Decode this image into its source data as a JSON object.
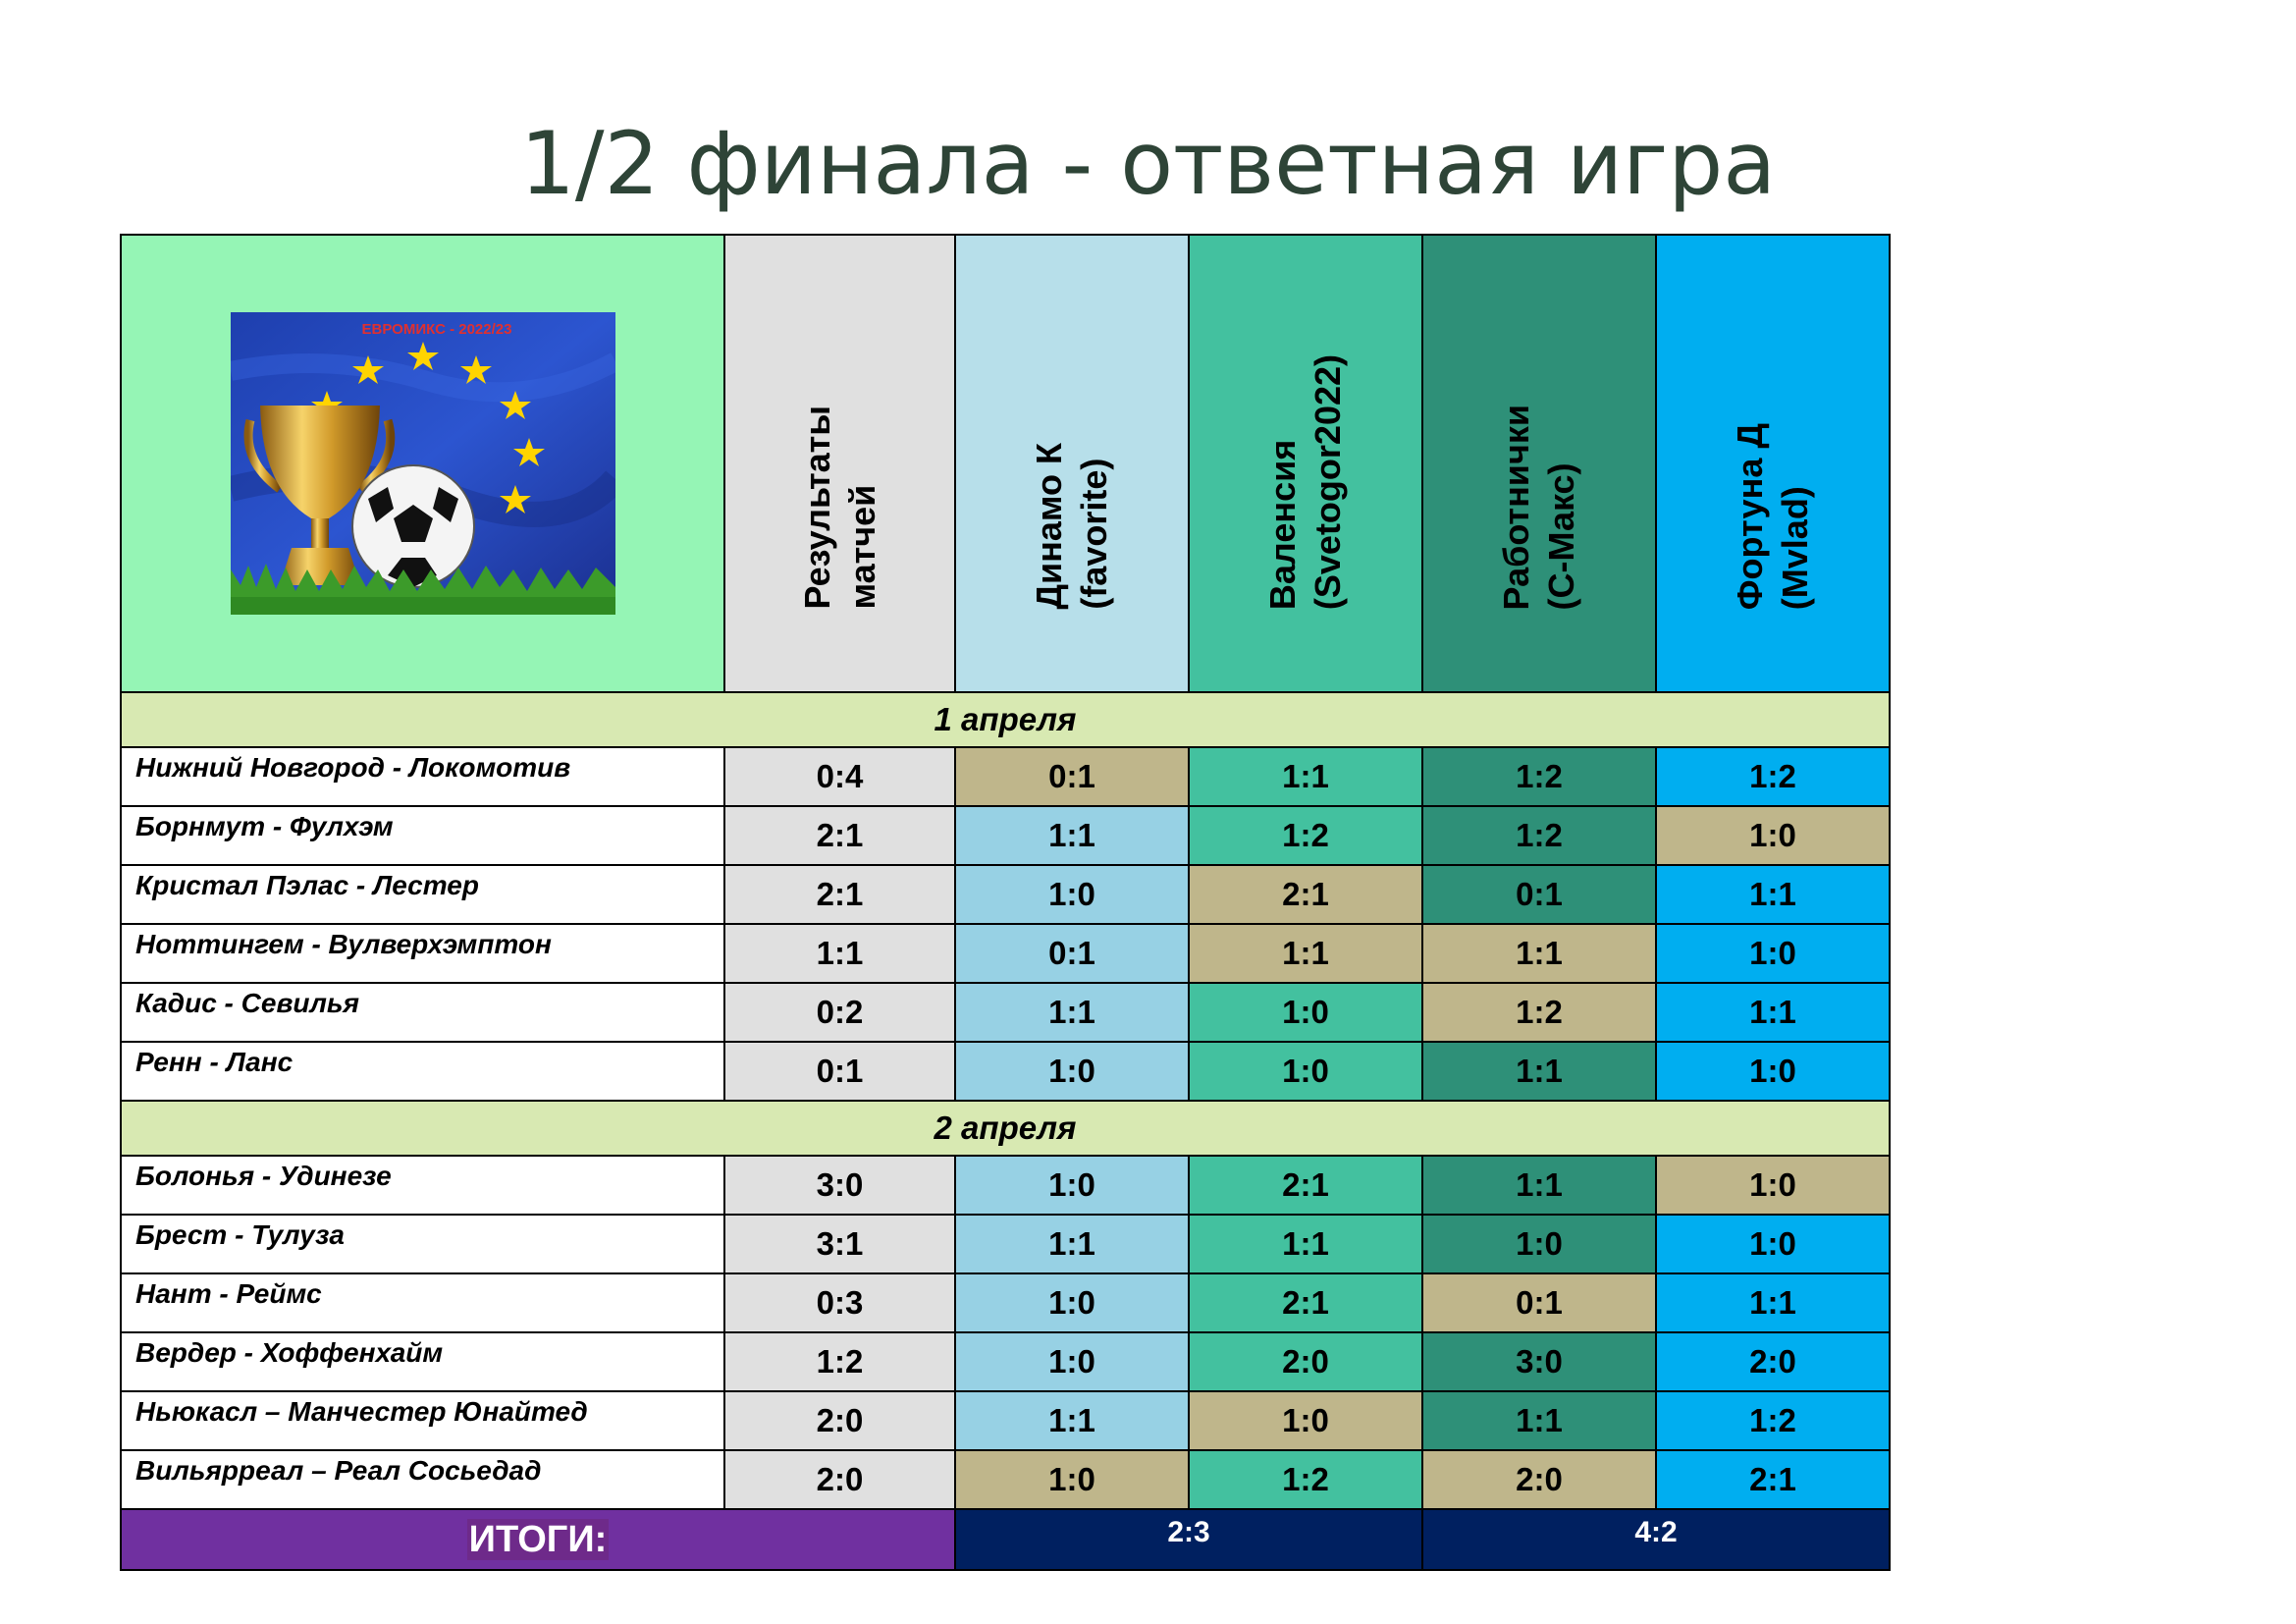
{
  "title": "1/2 финала - ответная игра",
  "logo_caption": "ЕВРОМИКС - 2022/23",
  "headers": [
    {
      "label": "Результаты\nматчей",
      "color": "#e0e0e0"
    },
    {
      "label": "Динамо К\n(favorite)",
      "color": "#b7dfea"
    },
    {
      "label": "Валенсия\n(Svetogor2022)",
      "color": "#43c19f"
    },
    {
      "label": "Работнички\n(С-Макс)",
      "color": "#2e9078"
    },
    {
      "label": "Фортуна Д\n(Mvlad)",
      "color": "#00aef0"
    }
  ],
  "colors": {
    "results": "#e0e0e0",
    "dinamo": "#97d1e4",
    "valencia": "#43c19f",
    "rabotnichki": "#2e9078",
    "fortuna": "#00aef0",
    "hit": "#bfb68b"
  },
  "sections": [
    {
      "date": "1 апреля",
      "matches": [
        {
          "name": "Нижний Новгород - Локомотив",
          "scores": [
            "0:4",
            "0:1",
            "1:1",
            "1:2",
            "1:2"
          ],
          "hits": [
            false,
            true,
            false,
            false,
            false
          ]
        },
        {
          "name": "Борнмут - Фулхэм",
          "scores": [
            "2:1",
            "1:1",
            "1:2",
            "1:2",
            "1:0"
          ],
          "hits": [
            false,
            false,
            false,
            false,
            true
          ]
        },
        {
          "name": "Кристал Пэлас - Лестер",
          "scores": [
            "2:1",
            "1:0",
            "2:1",
            "0:1",
            "1:1"
          ],
          "hits": [
            false,
            false,
            true,
            false,
            false
          ]
        },
        {
          "name": "Ноттингем - Вулверхэмптон",
          "scores": [
            "1:1",
            "0:1",
            "1:1",
            "1:1",
            "1:0"
          ],
          "hits": [
            false,
            false,
            true,
            true,
            false
          ]
        },
        {
          "name": "Кадис - Севилья",
          "scores": [
            "0:2",
            "1:1",
            "1:0",
            "1:2",
            "1:1"
          ],
          "hits": [
            false,
            false,
            false,
            true,
            false
          ]
        },
        {
          "name": "Ренн - Ланс",
          "scores": [
            "0:1",
            "1:0",
            "1:0",
            "1:1",
            "1:0"
          ],
          "hits": [
            false,
            false,
            false,
            false,
            false
          ]
        }
      ]
    },
    {
      "date": "2 апреля",
      "matches": [
        {
          "name": "Болонья - Удинезе",
          "scores": [
            "3:0",
            "1:0",
            "2:1",
            "1:1",
            "1:0"
          ],
          "hits": [
            false,
            false,
            false,
            false,
            true
          ]
        },
        {
          "name": "Брест - Тулуза",
          "scores": [
            "3:1",
            "1:1",
            "1:1",
            "1:0",
            "1:0"
          ],
          "hits": [
            false,
            false,
            false,
            false,
            false
          ]
        },
        {
          "name": "Нант - Реймс",
          "scores": [
            "0:3",
            "1:0",
            "2:1",
            "0:1",
            "1:1"
          ],
          "hits": [
            false,
            false,
            false,
            true,
            false
          ]
        },
        {
          "name": "Вердер - Хоффенхайм",
          "scores": [
            "1:2",
            "1:0",
            "2:0",
            "3:0",
            "2:0"
          ],
          "hits": [
            false,
            false,
            false,
            false,
            false
          ]
        },
        {
          "name": "Ньюкасл – Манчестер Юнайтед",
          "scores": [
            "2:0",
            "1:1",
            "1:0",
            "1:1",
            "1:2"
          ],
          "hits": [
            false,
            false,
            true,
            false,
            false
          ]
        },
        {
          "name": "Вильярреал – Реал Сосьедад",
          "scores": [
            "2:0",
            "1:0",
            "1:2",
            "2:0",
            "2:1"
          ],
          "hits": [
            false,
            true,
            false,
            true,
            false
          ]
        }
      ]
    }
  ],
  "totals": {
    "label": "ИТОГИ:",
    "score1": "2:3",
    "score2": "4:2"
  }
}
